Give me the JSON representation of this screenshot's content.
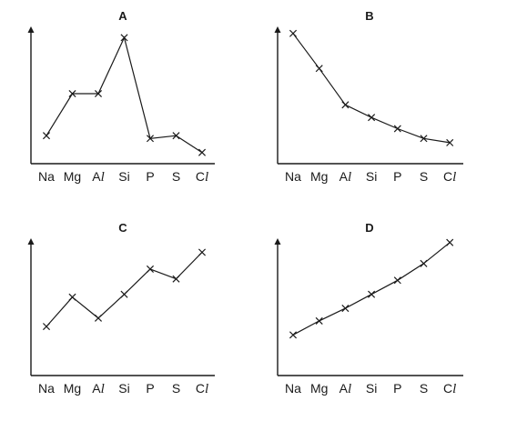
{
  "chart_data": [
    {
      "type": "line",
      "title": "A",
      "categories": [
        "Na",
        "Mg",
        "Al",
        "Si",
        "P",
        "S",
        "Cl"
      ],
      "values": [
        2.0,
        5.0,
        5.0,
        9.0,
        1.8,
        2.0,
        0.8
      ],
      "ylim": [
        0,
        10
      ],
      "grid": false,
      "axes_numbered": false,
      "marker": "x"
    },
    {
      "type": "line",
      "title": "B",
      "categories": [
        "Na",
        "Mg",
        "Al",
        "Si",
        "P",
        "S",
        "Cl"
      ],
      "values": [
        9.3,
        6.8,
        4.2,
        3.3,
        2.5,
        1.8,
        1.5
      ],
      "ylim": [
        0,
        10
      ],
      "grid": false,
      "axes_numbered": false,
      "marker": "x"
    },
    {
      "type": "line",
      "title": "C",
      "categories": [
        "Na",
        "Mg",
        "Al",
        "Si",
        "P",
        "S",
        "Cl"
      ],
      "values": [
        3.5,
        5.6,
        4.1,
        5.8,
        7.6,
        6.9,
        8.8
      ],
      "ylim": [
        0,
        10
      ],
      "grid": false,
      "axes_numbered": false,
      "marker": "x"
    },
    {
      "type": "line",
      "title": "D",
      "categories": [
        "Na",
        "Mg",
        "Al",
        "Si",
        "P",
        "S",
        "Cl"
      ],
      "values": [
        2.9,
        3.9,
        4.8,
        5.8,
        6.8,
        8.0,
        9.5
      ],
      "ylim": [
        0,
        10
      ],
      "grid": false,
      "axes_numbered": false,
      "marker": "x"
    }
  ]
}
